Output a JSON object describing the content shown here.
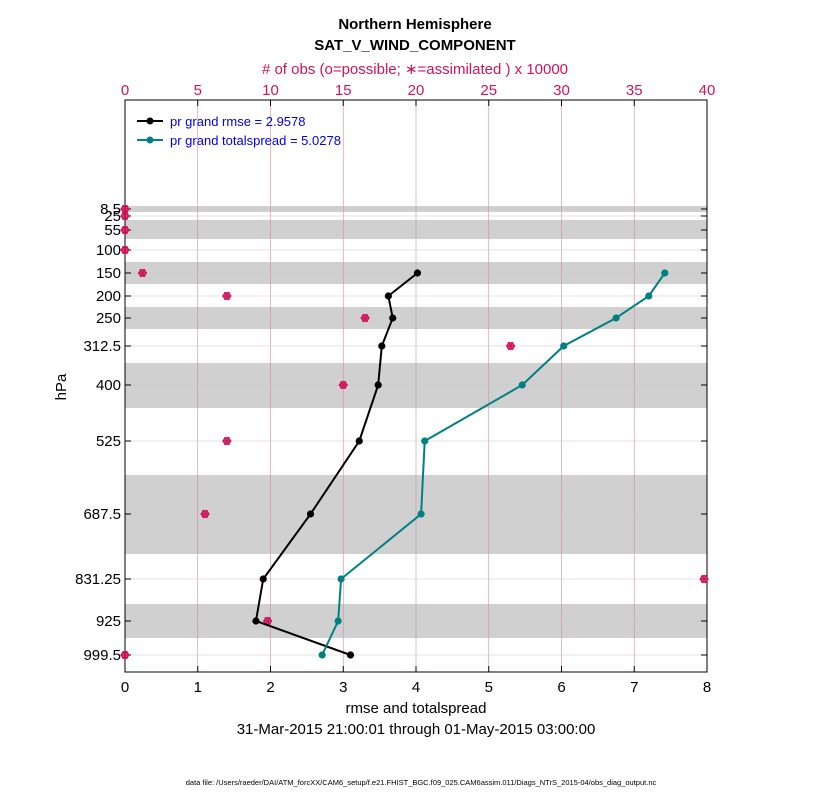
{
  "chart_data": {
    "type": "line",
    "title": "Northern Hemisphere",
    "subtitle": "SAT_V_WIND_COMPONENT",
    "top_axis_label": "# of obs (o=possible; ∗=assimilated ) x 10000",
    "xlabel": "rmse and totalspread",
    "ylabel": "hPa",
    "date_range": "31-Mar-2015 21:00:01 through 01-May-2015 03:00:00",
    "footer": "data file: /Users/raeder/DAI/ATM_forcXX/CAM6_setup/f.e21.FHIST_BGC.f09_025.CAM6assim.011/Diags_NTrS_2015-04/obs_diag_output.nc",
    "xlim": [
      0,
      8
    ],
    "x_ticks": [
      "0",
      "1",
      "2",
      "3",
      "4",
      "5",
      "6",
      "7",
      "8"
    ],
    "top_xlim": [
      0,
      40
    ],
    "top_ticks": [
      "0",
      "5",
      "10",
      "15",
      "20",
      "25",
      "30",
      "35",
      "40"
    ],
    "levels": [
      8.5,
      25,
      55,
      100,
      150,
      200,
      250,
      312.5,
      400,
      525,
      687.5,
      831.25,
      925,
      999.5
    ],
    "level_labels": [
      "8.5",
      "25",
      "55",
      "100",
      "150",
      "200",
      "250",
      "312.5",
      "400",
      "525",
      "687.5",
      "831.25",
      "925",
      "999.5"
    ],
    "series": [
      {
        "name": "pr grand rmse = 2.9578",
        "color": "#000000",
        "levels": [
          150,
          200,
          250,
          312.5,
          400,
          525,
          687.5,
          831.25,
          925,
          999.5
        ],
        "values": [
          4.02,
          3.62,
          3.68,
          3.53,
          3.48,
          3.22,
          2.55,
          1.9,
          1.8,
          3.1
        ]
      },
      {
        "name": "pr grand totalspread = 5.0278",
        "color": "#008080",
        "levels": [
          150,
          200,
          250,
          312.5,
          400,
          525,
          687.5,
          831.25,
          925,
          999.5
        ],
        "values": [
          7.42,
          7.2,
          6.75,
          6.03,
          5.46,
          4.12,
          4.07,
          2.97,
          2.93,
          2.71
        ]
      }
    ],
    "obs_counts": {
      "levels": [
        8.5,
        25,
        55,
        100,
        150,
        200,
        250,
        312.5,
        400,
        525,
        687.5,
        831.25,
        925,
        999.5
      ],
      "possible": [
        0,
        0,
        0,
        0,
        1.2,
        7,
        16.5,
        26.5,
        15,
        7,
        5.5,
        39.8,
        9.8,
        0
      ],
      "assimilated": [
        0,
        0,
        0,
        0,
        1.2,
        7,
        16.5,
        26.5,
        15,
        7,
        5.5,
        39.8,
        9.8,
        0
      ]
    },
    "obs_color": "#d0145a"
  }
}
